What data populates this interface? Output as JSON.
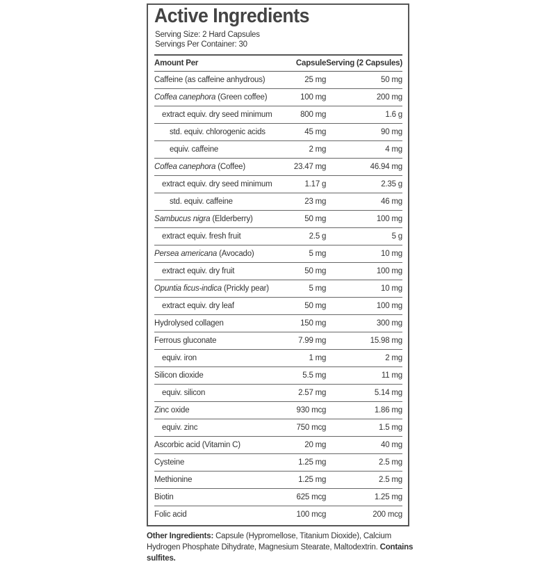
{
  "header": {
    "title": "Active Ingredients",
    "serving_size": "Serving Size: 2 Hard Capsules",
    "servings_per_container": "Servings Per Container: 30"
  },
  "table": {
    "columns": [
      "Amount Per",
      "Capsule",
      "Serving (2 Capsules)"
    ],
    "rows": [
      {
        "name": "Caffeine (as caffeine anhydrous)",
        "capsule": "25 mg",
        "serving": "50 mg"
      },
      {
        "name": {
          "italic": "Coffea canephora",
          "rest": "(Green coffee)"
        },
        "capsule": "100 mg",
        "serving": "200 mg"
      },
      {
        "name": "extract equiv. dry seed minimum",
        "capsule": "800 mg",
        "serving": "1.6 g"
      },
      {
        "name": "std. equiv. chlorogenic acids",
        "capsule": "45 mg",
        "serving": "90 mg"
      },
      {
        "name": "equiv. caffeine",
        "capsule": "2 mg",
        "serving": "4 mg"
      },
      {
        "name": {
          "italic": "Coffea canephora",
          "rest": "(Coffee)"
        },
        "capsule": "23.47 mg",
        "serving": "46.94 mg"
      },
      {
        "name": "extract equiv. dry seed minimum",
        "capsule": "1.17 g",
        "serving": "2.35 g"
      },
      {
        "name": "std. equiv. caffeine",
        "capsule": "23 mg",
        "serving": "46 mg"
      },
      {
        "name": {
          "italic": "Sambucus nigra",
          "rest": "(Elderberry)"
        },
        "capsule": "50 mg",
        "serving": "100 mg"
      },
      {
        "name": "extract equiv. fresh fruit",
        "capsule": "2.5 g",
        "serving": "5 g"
      },
      {
        "name": {
          "italic": "Persea americana",
          "rest": "(Avocado)"
        },
        "capsule": "5 mg",
        "serving": "10 mg"
      },
      {
        "name": "extract equiv. dry fruit",
        "capsule": "50 mg",
        "serving": "100 mg"
      },
      {
        "name": {
          "italic": "Opuntia ficus-indica",
          "rest": "(Prickly pear)"
        },
        "capsule": "5 mg",
        "serving": "10 mg"
      },
      {
        "name": "extract equiv. dry leaf",
        "capsule": "50 mg",
        "serving": "100 mg"
      },
      {
        "name": "Hydrolysed collagen",
        "capsule": "150 mg",
        "serving": "300 mg"
      },
      {
        "name": "Ferrous gluconate",
        "capsule": "7.99 mg",
        "serving": "15.98 mg"
      },
      {
        "name": "equiv. iron",
        "capsule": "1 mg",
        "serving": "2 mg"
      },
      {
        "name": "Silicon dioxide",
        "capsule": "5.5 mg",
        "serving": "11 mg"
      },
      {
        "name": "equiv. silicon",
        "capsule": "2.57 mg",
        "serving": "5.14 mg"
      },
      {
        "name": "Zinc oxide",
        "capsule": "930 mcg",
        "serving": "1.86 mg"
      },
      {
        "name": "equiv. zinc",
        "capsule": "750 mcg",
        "serving": "1.5 mg"
      },
      {
        "name": "Ascorbic acid (Vitamin C)",
        "capsule": "20 mg",
        "serving": "40 mg"
      },
      {
        "name": "Cysteine",
        "capsule": "1.25 mg",
        "serving": "2.5 mg"
      },
      {
        "name": "Methionine",
        "capsule": "1.25 mg",
        "serving": "2.5 mg"
      },
      {
        "name": "Biotin",
        "capsule": "625 mcg",
        "serving": "1.25 mg"
      },
      {
        "name": "Folic acid",
        "capsule": "100 mcg",
        "serving": "200 mcg"
      }
    ]
  },
  "footer": {
    "label": "Other Ingredients:",
    "text": "Capsule (Hypromellose, Titanium Dioxide), Calcium Hydrogen Phosphate Dihydrate, Magnesium Stearate, Maltodextrin.",
    "warning": "Contains sulfites."
  }
}
